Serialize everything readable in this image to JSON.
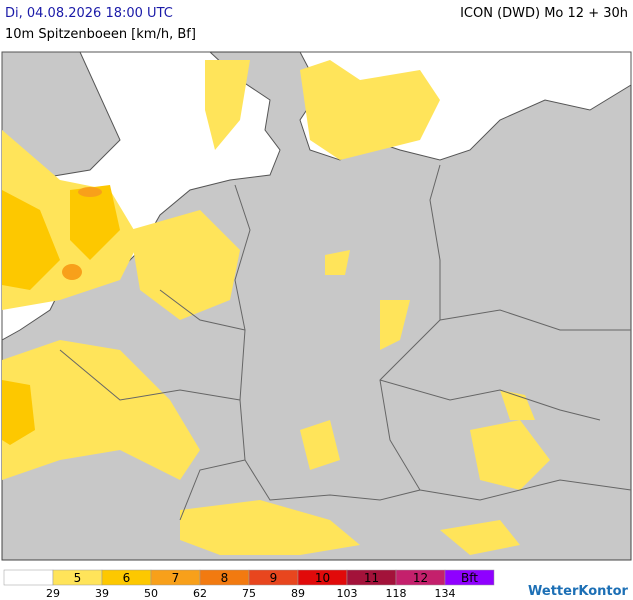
{
  "header": {
    "date": "Di, 04.08.2026 18:00 UTC",
    "model": "ICON (DWD) Mo 12 + 30h"
  },
  "subtitle": "10m Spitzenboeen [km/h, Bf]",
  "legend": {
    "boxes": [
      {
        "color": "#ffffff"
      },
      {
        "label": "5",
        "color": "#ffe45a"
      },
      {
        "label": "6",
        "color": "#fdc800"
      },
      {
        "label": "7",
        "color": "#f8a01a"
      },
      {
        "label": "8",
        "color": "#f27a10"
      },
      {
        "label": "9",
        "color": "#e8461e"
      },
      {
        "label": "10",
        "color": "#e10a0a"
      },
      {
        "label": "11",
        "color": "#a3123a"
      },
      {
        "label": "12",
        "color": "#c4206c"
      },
      {
        "label": "Bft",
        "color": "#8f00ff"
      }
    ],
    "thresholds": [
      29,
      39,
      50,
      62,
      75,
      89,
      103,
      118,
      134
    ]
  },
  "logo": "WetterKontor"
}
